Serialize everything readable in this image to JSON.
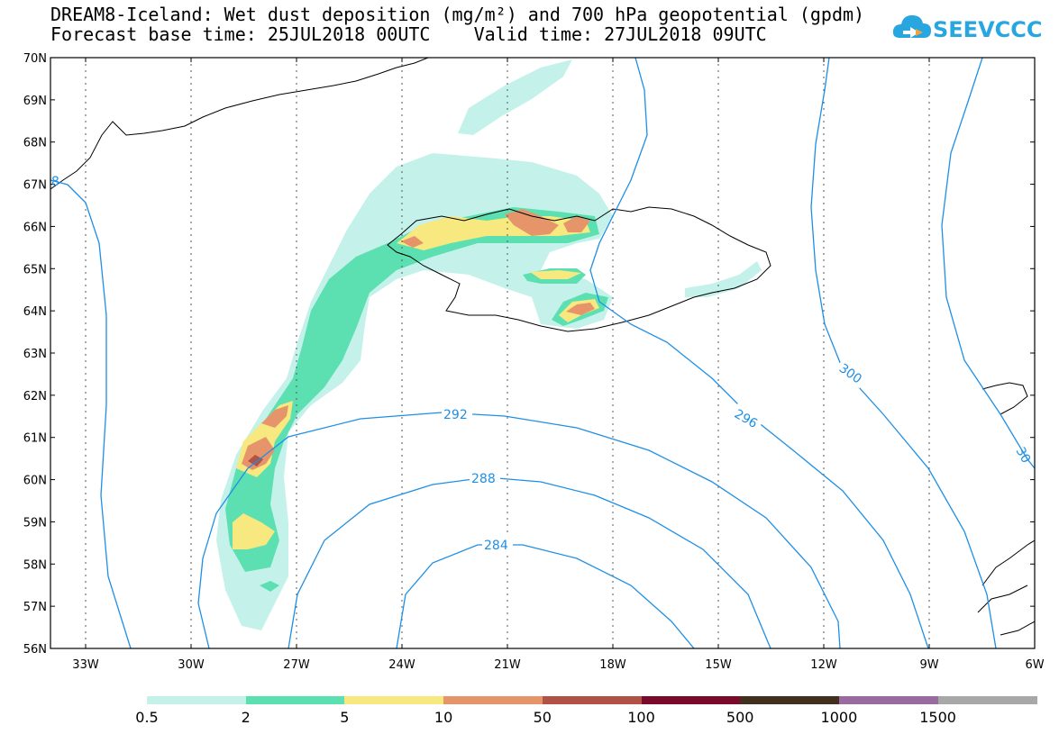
{
  "header": {
    "title_line1": "DREAM8-Iceland: Wet dust deposition (mg/m²) and 700 hPa geopotential (gpdm)",
    "title_line2": "Forecast base time: 25JUL2018 00UTC    Valid time: 27JUL2018 09UTC"
  },
  "logo": {
    "text": "SEEVCCC",
    "icon": "cloud-icon",
    "color": "#27a6e0"
  },
  "map": {
    "lon_range": [
      -34,
      -6
    ],
    "lat_range": [
      56,
      70
    ],
    "lat_labels": [
      "56N",
      "57N",
      "58N",
      "59N",
      "60N",
      "61N",
      "62N",
      "63N",
      "64N",
      "65N",
      "66N",
      "67N",
      "68N",
      "69N",
      "70N"
    ],
    "lon_labels": [
      "33W",
      "30W",
      "27W",
      "24W",
      "21W",
      "18W",
      "15W",
      "12W",
      "9W",
      "6W"
    ],
    "contour_color": "#1e8fe6",
    "contour_labels": [
      "284",
      "288",
      "292",
      "296",
      "300",
      "30",
      "8"
    ]
  },
  "legend": {
    "colors": [
      "#c4f2ea",
      "#5ce0b2",
      "#f8e880",
      "#e6946a",
      "#b05245",
      "#7a0a2c",
      "#41301e",
      "#9a6ba0",
      "#a8a8a8"
    ],
    "labels": [
      "0.5",
      "2",
      "5",
      "10",
      "50",
      "100",
      "500",
      "1000",
      "1500"
    ]
  }
}
